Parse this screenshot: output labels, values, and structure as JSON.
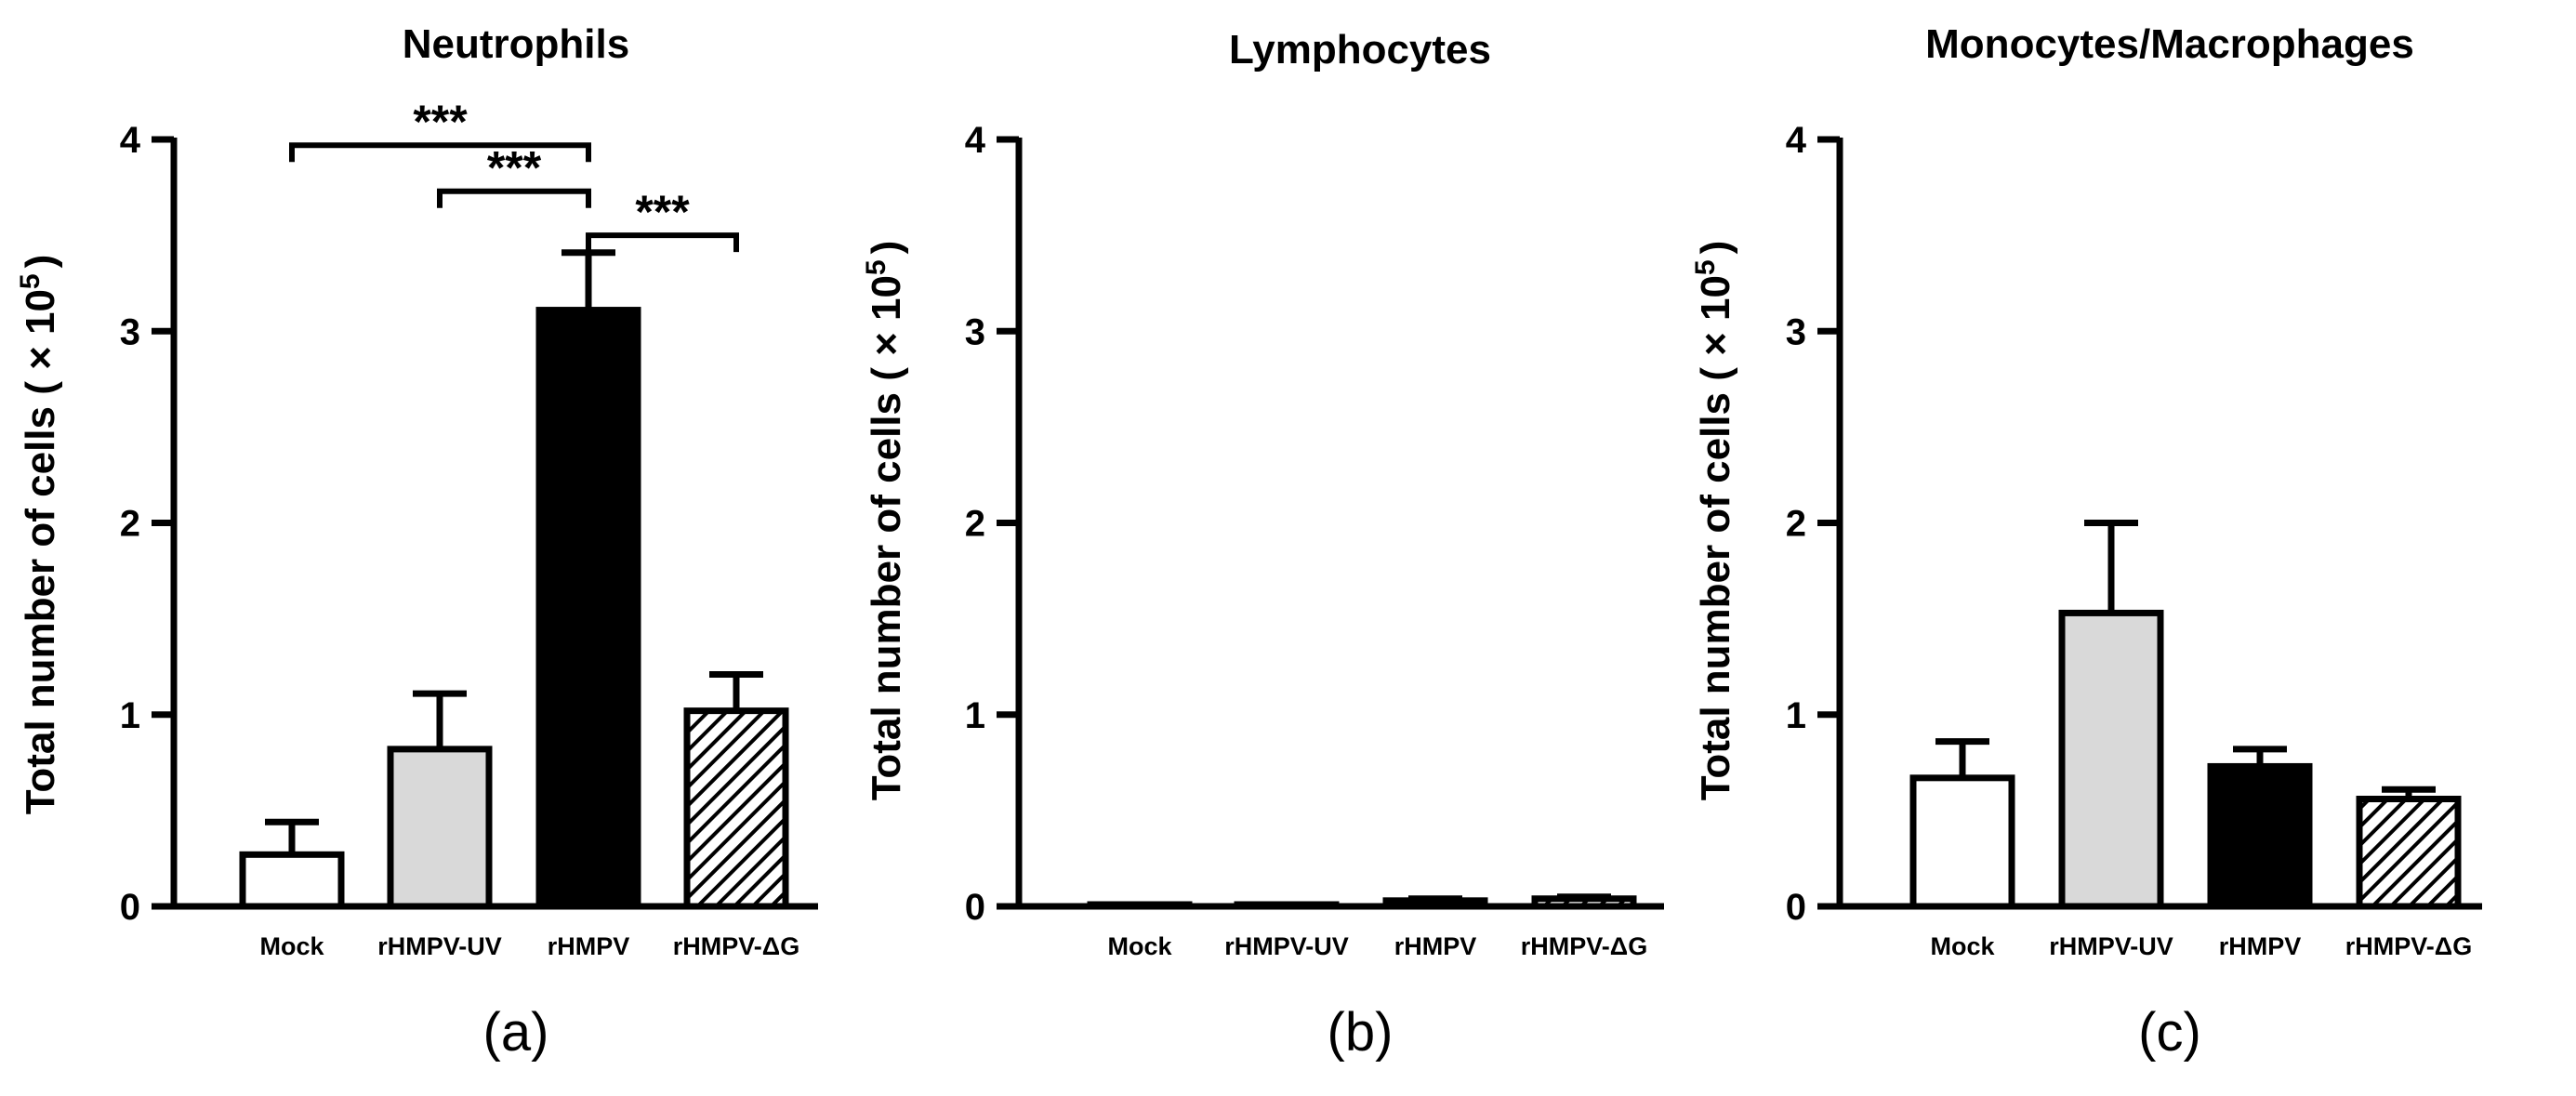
{
  "figure": {
    "panels_caption": "Three bar charts of total number of cells",
    "chart_data": [
      {
        "type": "bar",
        "panel_label": "(a)",
        "title": "Neutrophils",
        "ylabel_main": "Total number of cells ( × 10",
        "ylabel_exp": "5",
        "ylabel_close": ")",
        "categories": [
          "Mock",
          "rHMPV-UV",
          "rHMPV",
          "rHMPV-ΔG"
        ],
        "values": [
          0.27,
          0.82,
          3.11,
          1.02
        ],
        "errors": [
          0.17,
          0.29,
          0.3,
          0.19
        ],
        "ylim": [
          0,
          4
        ],
        "yticks": [
          "0",
          "1",
          "2",
          "3",
          "4"
        ],
        "fills": [
          "#ffffff",
          "#d9d9d9",
          "#000000",
          "hatched"
        ],
        "significance": [
          {
            "from": 0,
            "to": 2,
            "level": 3.97,
            "label": "***"
          },
          {
            "from": 1,
            "to": 2,
            "level": 3.73,
            "label": "***"
          },
          {
            "from": 2,
            "to": 3,
            "level": 3.5,
            "label": "***"
          }
        ]
      },
      {
        "type": "bar",
        "panel_label": "(b)",
        "title": "Lymphocytes",
        "ylabel_main": "Total number of cells ( × 10",
        "ylabel_exp": "5",
        "ylabel_close": ")",
        "categories": [
          "Mock",
          "rHMPV-UV",
          "rHMPV",
          "rHMPV-ΔG"
        ],
        "values": [
          0.005,
          0.003,
          0.03,
          0.04
        ],
        "errors": [
          0.0,
          0.0,
          0.01,
          0.01
        ],
        "ylim": [
          0,
          4
        ],
        "yticks": [
          "0",
          "1",
          "2",
          "3",
          "4"
        ],
        "fills": [
          "#ffffff",
          "#d9d9d9",
          "#000000",
          "hatched"
        ],
        "significance": []
      },
      {
        "type": "bar",
        "panel_label": "(c)",
        "title": "Monocytes/Macrophages",
        "ylabel_main": "Total number of cells ( × 10",
        "ylabel_exp": "5",
        "ylabel_close": ")",
        "categories": [
          "Mock",
          "rHMPV-UV",
          "rHMPV",
          "rHMPV-ΔG"
        ],
        "values": [
          0.67,
          1.53,
          0.73,
          0.56
        ],
        "errors": [
          0.19,
          0.47,
          0.09,
          0.05
        ],
        "ylim": [
          0,
          4
        ],
        "yticks": [
          "0",
          "1",
          "2",
          "3",
          "4"
        ],
        "fills": [
          "#ffffff",
          "#d9d9d9",
          "#000000",
          "hatched"
        ],
        "significance": []
      }
    ]
  }
}
